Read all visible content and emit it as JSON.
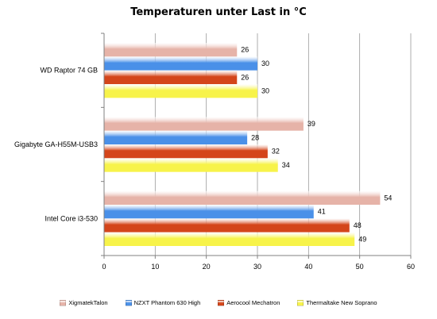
{
  "chart_data": {
    "type": "bar",
    "orientation": "horizontal",
    "title": "Temperaturen unter Last in °C",
    "categories": [
      "WD Raptor 74 GB",
      "Gigabyte GA-H55M-USB3",
      "Intel Core i3-530"
    ],
    "series": [
      {
        "name": "XigmatekTalon",
        "color": "#e6b3a8",
        "values": [
          26,
          39,
          54
        ]
      },
      {
        "name": "NZXT Phantom 630 High",
        "color": "#4a90e8",
        "values": [
          30,
          28,
          41
        ]
      },
      {
        "name": "Aerocool Mechatron",
        "color": "#d4451a",
        "values": [
          26,
          32,
          48
        ]
      },
      {
        "name": "Thermaltake New Soprano",
        "color": "#f7f34a",
        "values": [
          30,
          34,
          49
        ]
      }
    ],
    "xlim": [
      0,
      60
    ],
    "xticks": [
      0,
      10,
      20,
      30,
      40,
      50,
      60
    ],
    "grid": true,
    "legend_position": "bottom"
  }
}
